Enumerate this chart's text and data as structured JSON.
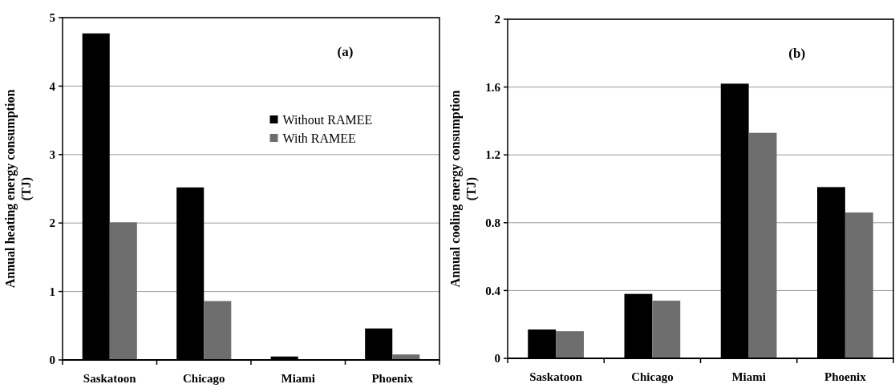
{
  "chart_data": [
    {
      "type": "bar",
      "ylabel": "Annual heating energy consumption (TJ)",
      "annotations": [
        "(a)"
      ],
      "categories": [
        "Saskatoon",
        "Chicago",
        "Miami",
        "Phoenix"
      ],
      "series": [
        {
          "name": "Without RAMEE",
          "color": "#000000",
          "values": [
            4.77,
            2.52,
            0.05,
            0.46
          ]
        },
        {
          "name": "With RAMEE",
          "color": "#6e6e6e",
          "values": [
            2.01,
            0.86,
            null,
            0.08
          ]
        }
      ],
      "ylim": [
        0,
        5
      ],
      "yticks": [
        0,
        1,
        2,
        3,
        4,
        5
      ],
      "grid": "y",
      "legend": "top right"
    },
    {
      "type": "bar",
      "ylabel": "Annual cooling energy consumption (TJ)",
      "annotations": [
        "(b)"
      ],
      "categories": [
        "Saskatoon",
        "Chicago",
        "Miami",
        "Phoenix"
      ],
      "series": [
        {
          "color": "#000000",
          "values": [
            0.17,
            0.38,
            1.62,
            1.01
          ]
        },
        {
          "color": "#6e6e6e",
          "values": [
            0.16,
            0.34,
            1.33,
            0.86
          ]
        }
      ],
      "ylim": [
        0,
        2
      ],
      "yticks": [
        0,
        0.4,
        0.8,
        1.2,
        1.6,
        2
      ],
      "grid": "y"
    }
  ]
}
